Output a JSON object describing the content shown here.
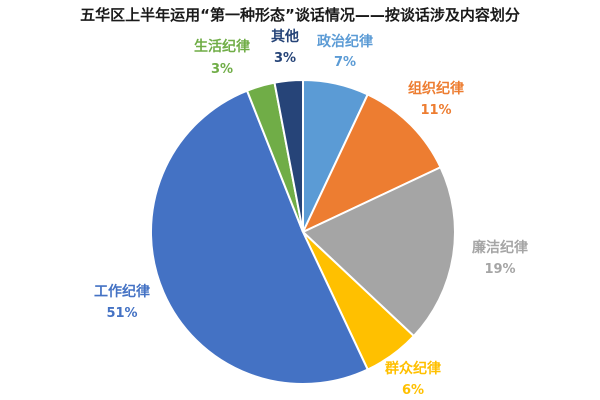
{
  "chart_data": {
    "type": "pie",
    "title": "五华区上半年运用“第一种形态”谈话情况——按谈话涉及内容划分",
    "start_angle_deg": 0,
    "direction": "clockwise",
    "legend": "none",
    "slices": [
      {
        "name": "政治纪律",
        "value": 7,
        "label": "7%",
        "color": "#5b9bd5"
      },
      {
        "name": "组织纪律",
        "value": 11,
        "label": "11%",
        "color": "#ed7d31"
      },
      {
        "name": "廉洁纪律",
        "value": 19,
        "label": "19%",
        "color": "#a5a5a5"
      },
      {
        "name": "群众纪律",
        "value": 6,
        "label": "6%",
        "color": "#ffc000"
      },
      {
        "name": "工作纪律",
        "value": 51,
        "label": "51%",
        "color": "#4472c4"
      },
      {
        "name": "生活纪律",
        "value": 3,
        "label": "3%",
        "color": "#70ad47"
      },
      {
        "name": "其他",
        "value": 3,
        "label": "3%",
        "color": "#264478"
      }
    ]
  }
}
